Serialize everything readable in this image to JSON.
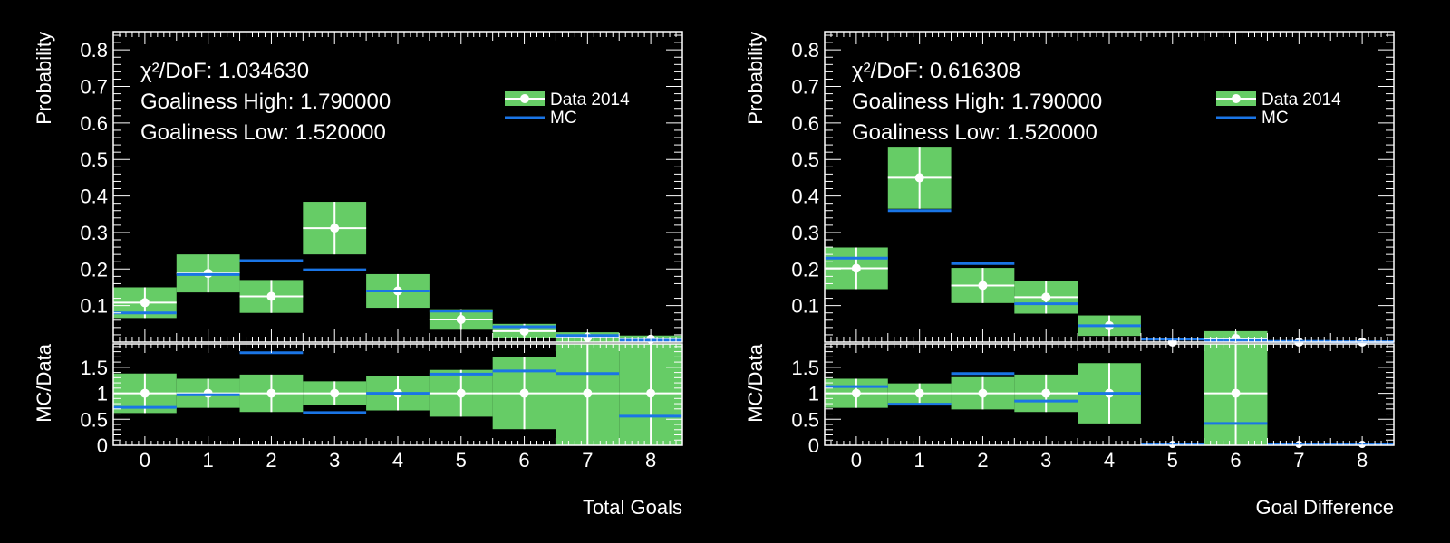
{
  "chart_data": [
    {
      "type": "bar",
      "panel": "left",
      "xlabel": "Total Goals",
      "ylabel_top": "Probability",
      "ylabel_bottom": "MC/Data",
      "stats": [
        "χ²/DoF: 1.034630",
        "Goaliness High: 1.790000",
        "Goaliness Low: 1.520000"
      ],
      "legend": [
        "Data 2014",
        "MC"
      ],
      "legend_position": "top-right",
      "x_ticks": [
        "0",
        "1",
        "2",
        "3",
        "4",
        "5",
        "6",
        "7",
        "8"
      ],
      "y_ticks_top": [
        "0.1",
        "0.2",
        "0.3",
        "0.4",
        "0.5",
        "0.6",
        "0.7",
        "0.8"
      ],
      "y_ticks_bottom": [
        "0",
        "0.5",
        "1",
        "1.5"
      ],
      "xlim": [
        -0.5,
        8.5
      ],
      "ylim_top": [
        0.0,
        0.85
      ],
      "ylim_bottom": [
        0,
        1.95
      ],
      "x": [
        0,
        1,
        2,
        3,
        4,
        5,
        6,
        7,
        8
      ],
      "data": [
        0.108,
        0.188,
        0.125,
        0.312,
        0.14,
        0.062,
        0.03,
        0.013,
        0.008
      ],
      "data_err": [
        0.042,
        0.052,
        0.045,
        0.072,
        0.046,
        0.028,
        0.02,
        0.014,
        0.01
      ],
      "mc": [
        0.08,
        0.185,
        0.223,
        0.198,
        0.14,
        0.085,
        0.042,
        0.018,
        0.005
      ],
      "ratio_band": [
        0.38,
        0.28,
        0.36,
        0.23,
        0.33,
        0.45,
        0.69,
        1.0,
        1.0
      ],
      "ratio_mc": [
        0.73,
        0.97,
        1.78,
        0.63,
        1.0,
        1.37,
        1.43,
        1.38,
        0.56
      ]
    },
    {
      "type": "bar",
      "panel": "right",
      "xlabel": "Goal Difference",
      "ylabel_top": "Probability",
      "ylabel_bottom": "MC/Data",
      "stats": [
        "χ²/DoF: 0.616308",
        "Goaliness High: 1.790000",
        "Goaliness Low: 1.520000"
      ],
      "legend": [
        "Data 2014",
        "MC"
      ],
      "legend_position": "top-right",
      "x_ticks": [
        "0",
        "1",
        "2",
        "3",
        "4",
        "5",
        "6",
        "7",
        "8"
      ],
      "y_ticks_top": [
        "0.1",
        "0.2",
        "0.3",
        "0.4",
        "0.5",
        "0.6",
        "0.7",
        "0.8"
      ],
      "y_ticks_bottom": [
        "0",
        "0.5",
        "1",
        "1.5"
      ],
      "xlim": [
        -0.5,
        8.5
      ],
      "ylim_top": [
        0.0,
        0.85
      ],
      "ylim_bottom": [
        0,
        1.95
      ],
      "x": [
        0,
        1,
        2,
        3,
        4,
        5,
        6,
        7,
        8
      ],
      "data": [
        0.202,
        0.45,
        0.155,
        0.123,
        0.045,
        0.0,
        0.01,
        0.0,
        0.0
      ],
      "data_err": [
        0.057,
        0.085,
        0.048,
        0.045,
        0.028,
        0.0,
        0.02,
        0.0,
        0.0
      ],
      "mc": [
        0.23,
        0.36,
        0.215,
        0.105,
        0.045,
        0.008,
        0.004,
        0.002,
        0.001
      ],
      "ratio_band": [
        0.28,
        0.19,
        0.31,
        0.36,
        0.58,
        0.0,
        1.0,
        0.0,
        0.0
      ],
      "ratio_mc": [
        1.13,
        0.79,
        1.38,
        0.85,
        1.0,
        0.0,
        0.42,
        0.0,
        0.0
      ]
    }
  ],
  "colors": {
    "background": "#000000",
    "data_band": "#66cc66",
    "mc_line": "#1a75e6",
    "axis": "#ffffff"
  }
}
